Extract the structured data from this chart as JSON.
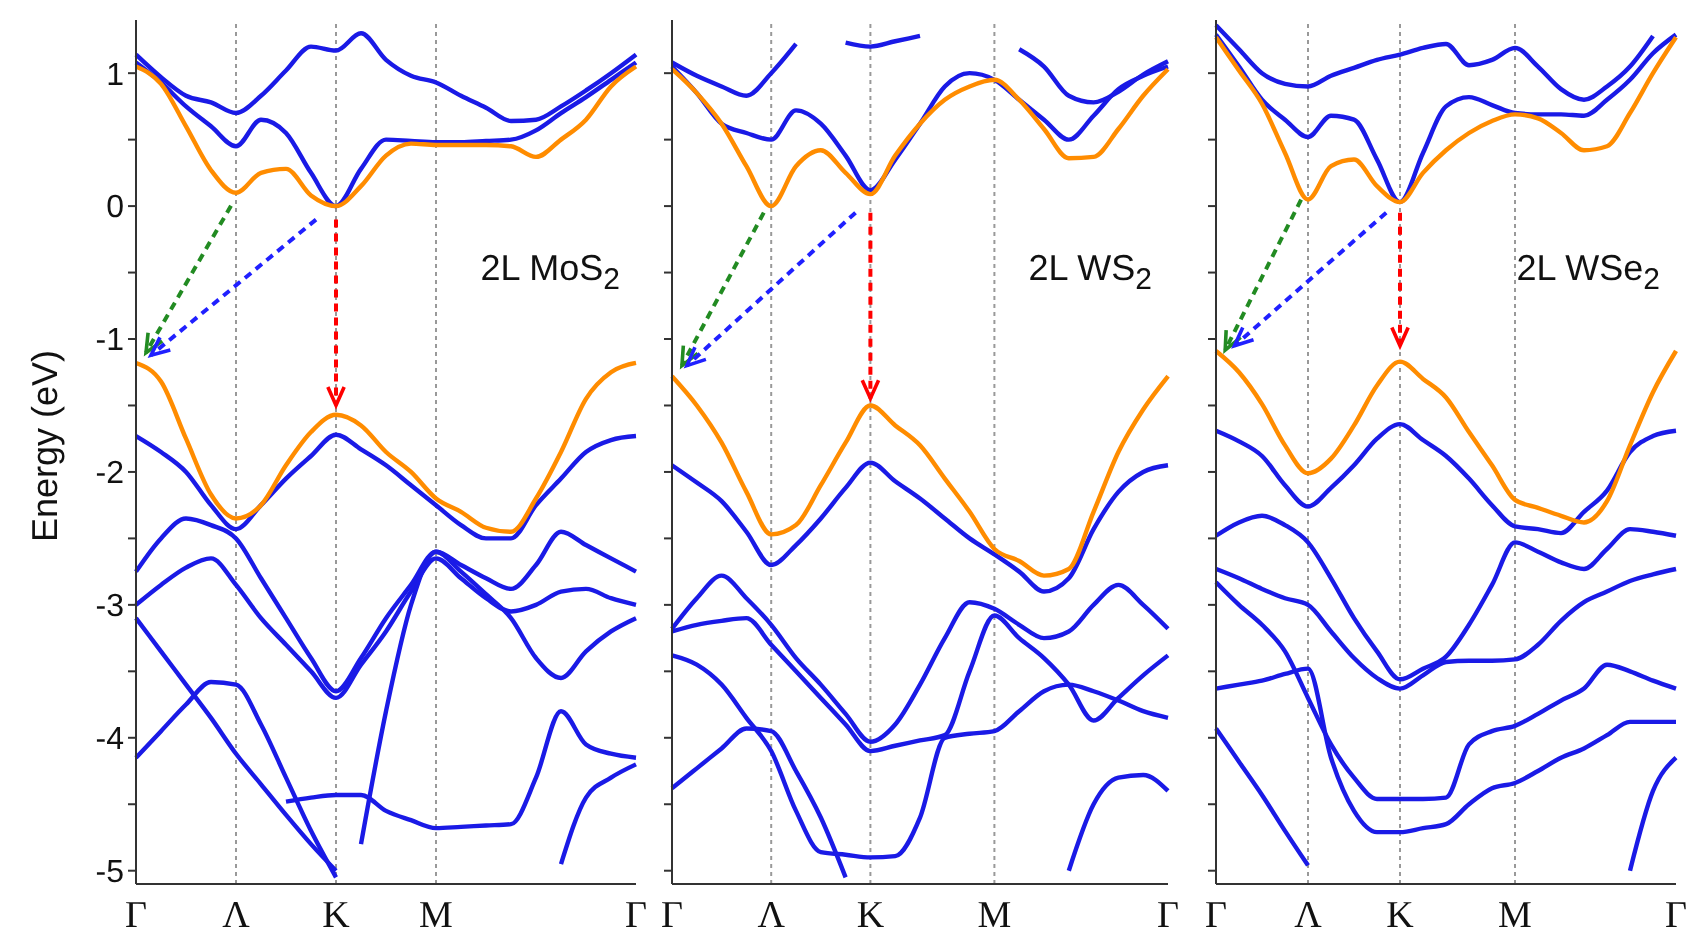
{
  "chart_data": [
    {
      "type": "line",
      "ylabel": "Energy (eV)",
      "annotations": [
        "2L MoS$_{2}$"
      ],
      "categories": [
        "Γ",
        null,
        null,
        null,
        "Λ",
        null,
        null,
        null,
        "K",
        null,
        null,
        null,
        "M",
        null,
        null,
        null,
        null,
        null,
        null,
        null,
        "Γ"
      ],
      "ylim": [
        -5.1,
        1.4
      ],
      "yticks": [
        -5,
        {
          "value": -4.5,
          "label": null
        },
        -4,
        {
          "value": -3.5,
          "label": null
        },
        -3,
        {
          "value": -2.5,
          "label": null
        },
        -2,
        {
          "value": -1.5,
          "label": null
        },
        -1,
        {
          "value": -0.5,
          "label": null
        },
        0,
        {
          "value": 0.5,
          "label": null
        },
        1
      ],
      "grid": "x",
      "legend": false,
      "series": [
        {
          "color": "#1a1ae6",
          "values": [
            1.14,
            0.97,
            0.83,
            0.78,
            0.7,
            0.83,
            1.02,
            1.2,
            1.17,
            1.3,
            1.1,
            0.98,
            0.93,
            0.83,
            0.74,
            0.64,
            0.65,
            0.75,
            0.87,
            1.0,
            1.14
          ]
        },
        {
          "color": "#1a1ae6",
          "values": [
            1.08,
            0.93,
            0.75,
            0.6,
            0.45,
            0.65,
            0.55,
            0.25,
            0.0,
            0.28,
            0.5,
            0.49,
            0.48,
            0.48,
            0.49,
            0.5,
            0.57,
            0.7,
            0.82,
            0.95,
            1.08
          ]
        },
        {
          "color": "#1a1ae6",
          "values": [
            -1.73,
            -1.85,
            -2.0,
            -2.25,
            -2.43,
            -2.25,
            -2.05,
            -1.88,
            -1.72,
            -1.83,
            -1.95,
            -2.1,
            -2.25,
            -2.4,
            -2.5,
            -2.5,
            -2.25,
            -2.05,
            -1.85,
            -1.76,
            -1.73
          ]
        },
        {
          "color": "#1a1ae6",
          "values": [
            -2.75,
            -2.5,
            -2.35,
            -2.4,
            -2.5,
            -2.8,
            -3.1,
            -3.4,
            -3.65,
            -3.4,
            -3.1,
            -2.85,
            -2.6,
            -2.7,
            -2.8,
            -2.88,
            -2.7,
            -2.45,
            -2.55,
            -2.65,
            -2.75
          ]
        },
        {
          "color": "#1a1ae6",
          "values": [
            -3.0,
            -2.85,
            -2.72,
            -2.65,
            -2.85,
            -3.1,
            -3.3,
            -3.5,
            -3.7,
            -3.45,
            -3.2,
            -2.9,
            -2.65,
            -2.8,
            -2.95,
            -3.05,
            -3.0,
            -2.9,
            -2.88,
            -2.95,
            -3.0
          ]
        },
        {
          "color": "#1a1ae6",
          "values": [
            -3.1,
            -3.35,
            -3.6,
            -3.85,
            -4.12,
            -4.35,
            -4.58,
            -4.8,
            -5.0,
            null,
            null,
            null,
            null,
            null,
            null,
            null,
            null,
            null,
            null,
            null,
            null
          ]
        },
        {
          "color": "#1a1ae6",
          "values": [
            -4.15,
            -3.95,
            -3.75,
            -3.58,
            -3.6,
            -3.9,
            -4.3,
            -4.7,
            -5.05,
            null,
            null,
            null,
            null,
            null,
            null,
            null,
            null,
            null,
            null,
            null,
            null
          ]
        },
        {
          "color": "#1a1ae6",
          "values": [
            null,
            null,
            null,
            null,
            null,
            null,
            -4.48,
            -4.45,
            -4.43,
            -4.43,
            -4.55,
            -4.62,
            -4.68,
            -4.67,
            -4.66,
            -4.65,
            -4.3,
            -3.8,
            -4.05,
            -4.12,
            -4.15
          ]
        },
        {
          "color": "#1a1ae6",
          "values": [
            null,
            null,
            null,
            null,
            null,
            null,
            null,
            null,
            null,
            -4.8,
            -3.8,
            -3.0,
            -2.6,
            -2.75,
            -2.92,
            -3.1,
            -3.4,
            -3.55,
            -3.35,
            -3.2,
            -3.1
          ]
        },
        {
          "color": "#1a1ae6",
          "values": [
            null,
            null,
            null,
            null,
            null,
            null,
            null,
            null,
            null,
            null,
            null,
            null,
            null,
            null,
            null,
            null,
            null,
            -4.95,
            -4.45,
            -4.3,
            -4.2
          ]
        },
        {
          "color": "#ff8c00",
          "values": [
            1.05,
            0.92,
            0.6,
            0.27,
            0.1,
            0.25,
            0.28,
            0.08,
            0.0,
            0.15,
            0.38,
            0.47,
            0.46,
            0.46,
            0.46,
            0.45,
            0.37,
            0.5,
            0.65,
            0.9,
            1.05
          ]
        },
        {
          "color": "#ff8c00",
          "values": [
            -1.18,
            -1.32,
            -1.75,
            -2.17,
            -2.35,
            -2.25,
            -1.95,
            -1.7,
            -1.57,
            -1.65,
            -1.85,
            -2.0,
            -2.2,
            -2.3,
            -2.42,
            -2.45,
            -2.2,
            -1.85,
            -1.45,
            -1.25,
            -1.18
          ]
        }
      ]
    },
    {
      "type": "line",
      "annotations": [
        "2L WS$_{2}$"
      ],
      "categories": [
        "Γ",
        null,
        null,
        null,
        "Λ",
        null,
        null,
        null,
        "K",
        null,
        null,
        null,
        null,
        "M",
        null,
        null,
        null,
        null,
        null,
        null,
        "Γ"
      ],
      "ylim": [
        -5.1,
        1.4
      ],
      "yticks": [
        -5,
        {
          "value": -4.5,
          "label": null
        },
        -4,
        {
          "value": -3.5,
          "label": null
        },
        -3,
        {
          "value": -2.5,
          "label": null
        },
        -2,
        {
          "value": -1.5,
          "label": null
        },
        -1,
        {
          "value": -0.5,
          "label": null
        },
        0,
        {
          "value": 0.5,
          "label": null
        },
        1
      ],
      "grid": "x",
      "legend": false,
      "tick_labels": "x",
      "series": [
        {
          "color": "#1a1ae6",
          "values": [
            1.08,
            0.98,
            0.9,
            0.83,
            1.0,
            1.22,
            null,
            null,
            null,
            null,
            null,
            null,
            null,
            null,
            null,
            null,
            null,
            null,
            null,
            null,
            null
          ]
        },
        {
          "color": "#1a1ae6",
          "values": [
            null,
            null,
            null,
            null,
            null,
            null,
            null,
            1.23,
            1.2,
            1.24,
            1.28,
            null,
            null,
            null,
            null,
            null,
            null,
            null,
            null,
            null,
            null
          ]
        },
        {
          "color": "#1a1ae6",
          "values": [
            null,
            null,
            null,
            null,
            null,
            null,
            null,
            null,
            null,
            null,
            null,
            null,
            null,
            null,
            1.18,
            1.05,
            0.83,
            0.78,
            0.86,
            0.99,
            1.09
          ]
        },
        {
          "color": "#1a1ae6",
          "values": [
            1.05,
            0.85,
            0.62,
            0.55,
            0.5,
            0.72,
            0.62,
            0.38,
            0.12,
            0.35,
            0.62,
            0.9,
            1.0,
            0.95,
            0.8,
            0.65,
            0.5,
            0.68,
            0.88,
            0.98,
            1.05
          ]
        },
        {
          "color": "#1a1ae6",
          "values": [
            -1.95,
            -2.08,
            -2.22,
            -2.45,
            -2.7,
            -2.55,
            -2.35,
            -2.12,
            -1.93,
            -2.07,
            -2.2,
            -2.35,
            -2.5,
            -2.62,
            -2.75,
            -2.9,
            -2.8,
            -2.43,
            -2.15,
            -2.0,
            -1.95
          ]
        },
        {
          "color": "#1a1ae6",
          "values": [
            -3.18,
            -2.95,
            -2.78,
            -2.95,
            -3.15,
            -3.4,
            -3.6,
            -3.82,
            -4.03,
            -3.9,
            -3.6,
            -3.25,
            -2.98,
            -3.03,
            -3.15,
            -3.25,
            -3.2,
            -3.0,
            -2.85,
            -3.0,
            -3.18
          ]
        },
        {
          "color": "#1a1ae6",
          "values": [
            -3.2,
            -3.15,
            -3.12,
            -3.1,
            -3.3,
            -3.5,
            -3.7,
            -3.9,
            -4.1,
            -4.06,
            -4.02,
            -3.98,
            -3.5,
            -3.08,
            -3.25,
            -3.4,
            -3.6,
            -3.87,
            -3.7,
            -3.53,
            -3.38
          ]
        },
        {
          "color": "#1a1ae6",
          "values": [
            -3.38,
            -3.45,
            -3.6,
            -3.85,
            -4.1,
            -4.55,
            -4.86,
            -4.88,
            -4.9,
            -4.89,
            -4.6,
            -4.0,
            -3.97,
            -3.95,
            -3.8,
            -3.65,
            -3.6,
            -3.65,
            -3.72,
            -3.8,
            -3.85
          ]
        },
        {
          "color": "#1a1ae6",
          "values": [
            -4.38,
            -4.23,
            -4.08,
            -3.93,
            -3.95,
            -4.25,
            -4.6,
            -5.05,
            null,
            null,
            null,
            null,
            null,
            null,
            null,
            null,
            null,
            null,
            null,
            null,
            null
          ]
        },
        {
          "color": "#1a1ae6",
          "values": [
            null,
            null,
            null,
            null,
            null,
            null,
            null,
            null,
            null,
            null,
            null,
            null,
            null,
            null,
            null,
            null,
            -5.0,
            -4.5,
            -4.3,
            -4.28,
            -4.4
          ]
        },
        {
          "color": "#ff8c00",
          "values": [
            1.03,
            0.85,
            0.62,
            0.3,
            0.0,
            0.3,
            0.42,
            0.25,
            0.09,
            0.38,
            0.62,
            0.8,
            0.9,
            0.95,
            0.8,
            0.58,
            0.36,
            0.37,
            0.58,
            0.83,
            1.03
          ]
        },
        {
          "color": "#ff8c00",
          "values": [
            -1.28,
            -1.5,
            -1.78,
            -2.15,
            -2.47,
            -2.4,
            -2.1,
            -1.78,
            -1.5,
            -1.65,
            -1.8,
            -2.05,
            -2.3,
            -2.58,
            -2.67,
            -2.78,
            -2.73,
            -2.3,
            -1.85,
            -1.53,
            -1.28
          ]
        }
      ]
    },
    {
      "type": "line",
      "annotations": [
        "2L WSe$_{2}$"
      ],
      "categories": [
        "Γ",
        null,
        null,
        null,
        "Λ",
        null,
        null,
        null,
        "K",
        null,
        null,
        null,
        null,
        "M",
        null,
        null,
        null,
        null,
        null,
        null,
        "Γ"
      ],
      "ylim": [
        -5.1,
        1.4
      ],
      "yticks": [
        -5,
        {
          "value": -4.5,
          "label": null
        },
        -4,
        {
          "value": -3.5,
          "label": null
        },
        -3,
        {
          "value": -2.5,
          "label": null
        },
        -2,
        {
          "value": -1.5,
          "label": null
        },
        -1,
        {
          "value": -0.5,
          "label": null
        },
        0,
        {
          "value": 0.5,
          "label": null
        },
        1
      ],
      "grid": "x",
      "legend": false,
      "tick_labels": "x",
      "series": [
        {
          "color": "#1a1ae6",
          "values": [
            1.36,
            1.18,
            1.0,
            0.92,
            0.9,
            0.98,
            1.04,
            1.1,
            1.14,
            1.19,
            1.22,
            1.06,
            1.1,
            1.19,
            1.05,
            0.88,
            0.8,
            0.9,
            1.05,
            1.28,
            null
          ]
        },
        {
          "color": "#1a1ae6",
          "values": [
            1.29,
            1.05,
            0.8,
            0.65,
            0.52,
            0.68,
            0.65,
            0.35,
            0.03,
            0.4,
            0.75,
            0.82,
            0.76,
            0.7,
            0.69,
            0.69,
            0.68,
            0.8,
            0.95,
            1.15,
            1.29
          ]
        },
        {
          "color": "#1a1ae6",
          "values": [
            -1.69,
            -1.77,
            -1.88,
            -2.1,
            -2.26,
            -2.12,
            -1.95,
            -1.75,
            -1.64,
            -1.76,
            -1.88,
            -2.05,
            -2.25,
            -2.41,
            -2.43,
            -2.46,
            -2.3,
            -2.14,
            -1.85,
            -1.73,
            -1.69
          ]
        },
        {
          "color": "#1a1ae6",
          "values": [
            -2.48,
            -2.38,
            -2.33,
            -2.4,
            -2.53,
            -2.8,
            -3.1,
            -3.35,
            -3.56,
            -3.48,
            -3.39,
            -3.15,
            -2.85,
            -2.53,
            -2.6,
            -2.68,
            -2.73,
            -2.58,
            -2.43,
            -2.45,
            -2.48
          ]
        },
        {
          "color": "#1a1ae6",
          "values": [
            -2.73,
            -2.8,
            -2.88,
            -2.95,
            -3.0,
            -3.2,
            -3.4,
            -3.55,
            -3.63,
            -3.53,
            -3.43,
            -3.42,
            -3.42,
            -3.41,
            -3.3,
            -3.12,
            -2.98,
            -2.9,
            -2.82,
            -2.77,
            -2.73
          ]
        },
        {
          "color": "#1a1ae6",
          "values": [
            -2.83,
            -3.0,
            -3.15,
            -3.35,
            -3.7,
            -4.05,
            -4.3,
            -4.46,
            -4.46,
            -4.46,
            -4.45,
            -4.05,
            -3.95,
            -3.91,
            -3.82,
            -3.72,
            -3.63,
            -3.45,
            -3.5,
            -3.57,
            -3.63
          ]
        },
        {
          "color": "#1a1ae6",
          "values": [
            -3.63,
            -3.6,
            -3.57,
            -3.52,
            -3.48,
            -4.15,
            -4.55,
            -4.71,
            -4.71,
            -4.68,
            -4.65,
            -4.5,
            -4.38,
            -4.34,
            -4.25,
            -4.15,
            -4.08,
            -3.98,
            -3.88,
            -3.88,
            -3.88
          ]
        },
        {
          "color": "#1a1ae6",
          "values": [
            -3.93,
            -4.18,
            -4.43,
            -4.7,
            -4.96,
            null,
            null,
            null,
            null,
            null,
            null,
            null,
            null,
            null,
            null,
            null,
            null,
            null,
            null,
            null,
            null
          ]
        },
        {
          "color": "#1a1ae6",
          "values": [
            null,
            null,
            null,
            null,
            null,
            null,
            null,
            null,
            null,
            null,
            null,
            null,
            null,
            null,
            null,
            null,
            null,
            null,
            -5.0,
            -4.4,
            -4.15
          ]
        },
        {
          "color": "#ff8c00",
          "values": [
            1.27,
            1.02,
            0.77,
            0.4,
            0.05,
            0.3,
            0.35,
            0.15,
            0.03,
            0.25,
            0.42,
            0.55,
            0.64,
            0.69,
            0.66,
            0.55,
            0.42,
            0.45,
            0.7,
            1.0,
            1.27
          ]
        },
        {
          "color": "#ff8c00",
          "values": [
            -1.09,
            -1.25,
            -1.49,
            -1.8,
            -2.01,
            -1.9,
            -1.65,
            -1.35,
            -1.17,
            -1.3,
            -1.44,
            -1.7,
            -1.95,
            -2.21,
            -2.27,
            -2.33,
            -2.38,
            -2.22,
            -1.8,
            -1.4,
            -1.09
          ]
        }
      ]
    }
  ]
}
